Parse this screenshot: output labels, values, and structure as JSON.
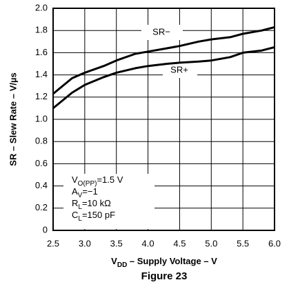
{
  "chart_data": {
    "type": "line",
    "x_label": {
      "main": "V",
      "sub": "DD",
      "rest": " – Supply Voltage – V"
    },
    "y_label": "SR – Slew Rate – V/µs",
    "caption": "Figure 23",
    "x": [
      2.5,
      2.8,
      3.0,
      3.3,
      3.5,
      3.8,
      4.0,
      4.3,
      4.5,
      4.8,
      5.0,
      5.3,
      5.5,
      5.8,
      6.0
    ],
    "series": [
      {
        "name": "SR−",
        "color": "#000000",
        "values": [
          1.23,
          1.37,
          1.42,
          1.48,
          1.53,
          1.59,
          1.61,
          1.64,
          1.66,
          1.7,
          1.72,
          1.74,
          1.77,
          1.8,
          1.83
        ]
      },
      {
        "name": "SR+",
        "color": "#000000",
        "values": [
          1.1,
          1.24,
          1.31,
          1.38,
          1.42,
          1.46,
          1.48,
          1.5,
          1.51,
          1.52,
          1.53,
          1.56,
          1.6,
          1.62,
          1.65
        ]
      }
    ],
    "conditions": [
      {
        "main": "V",
        "sub": "O(PP)",
        "rest": "=1.5 V"
      },
      {
        "main": "A",
        "sub": "V",
        "rest": "=−1"
      },
      {
        "main": "R",
        "sub": "L",
        "rest": "=10 kΩ"
      },
      {
        "main": "C",
        "sub": "L",
        "rest": "=150 pF"
      }
    ],
    "xlim": [
      2.5,
      6.0
    ],
    "ylim": [
      0,
      2.0
    ],
    "xticks": [
      2.5,
      {
        "value": 3.0,
        "label": "3.0"
      },
      3.5,
      {
        "value": 4.0,
        "label": "4.0"
      },
      4.5,
      {
        "value": 5.0,
        "label": "5.0"
      },
      5.5,
      {
        "value": 6.0,
        "label": "6.0"
      }
    ],
    "yticks": [
      0,
      0.2,
      0.4,
      0.6,
      0.8,
      {
        "value": 1.0,
        "label": "1.0"
      },
      1.2,
      1.4,
      1.6,
      1.8,
      {
        "value": 2.0,
        "label": "2.0"
      }
    ],
    "grid": true
  }
}
